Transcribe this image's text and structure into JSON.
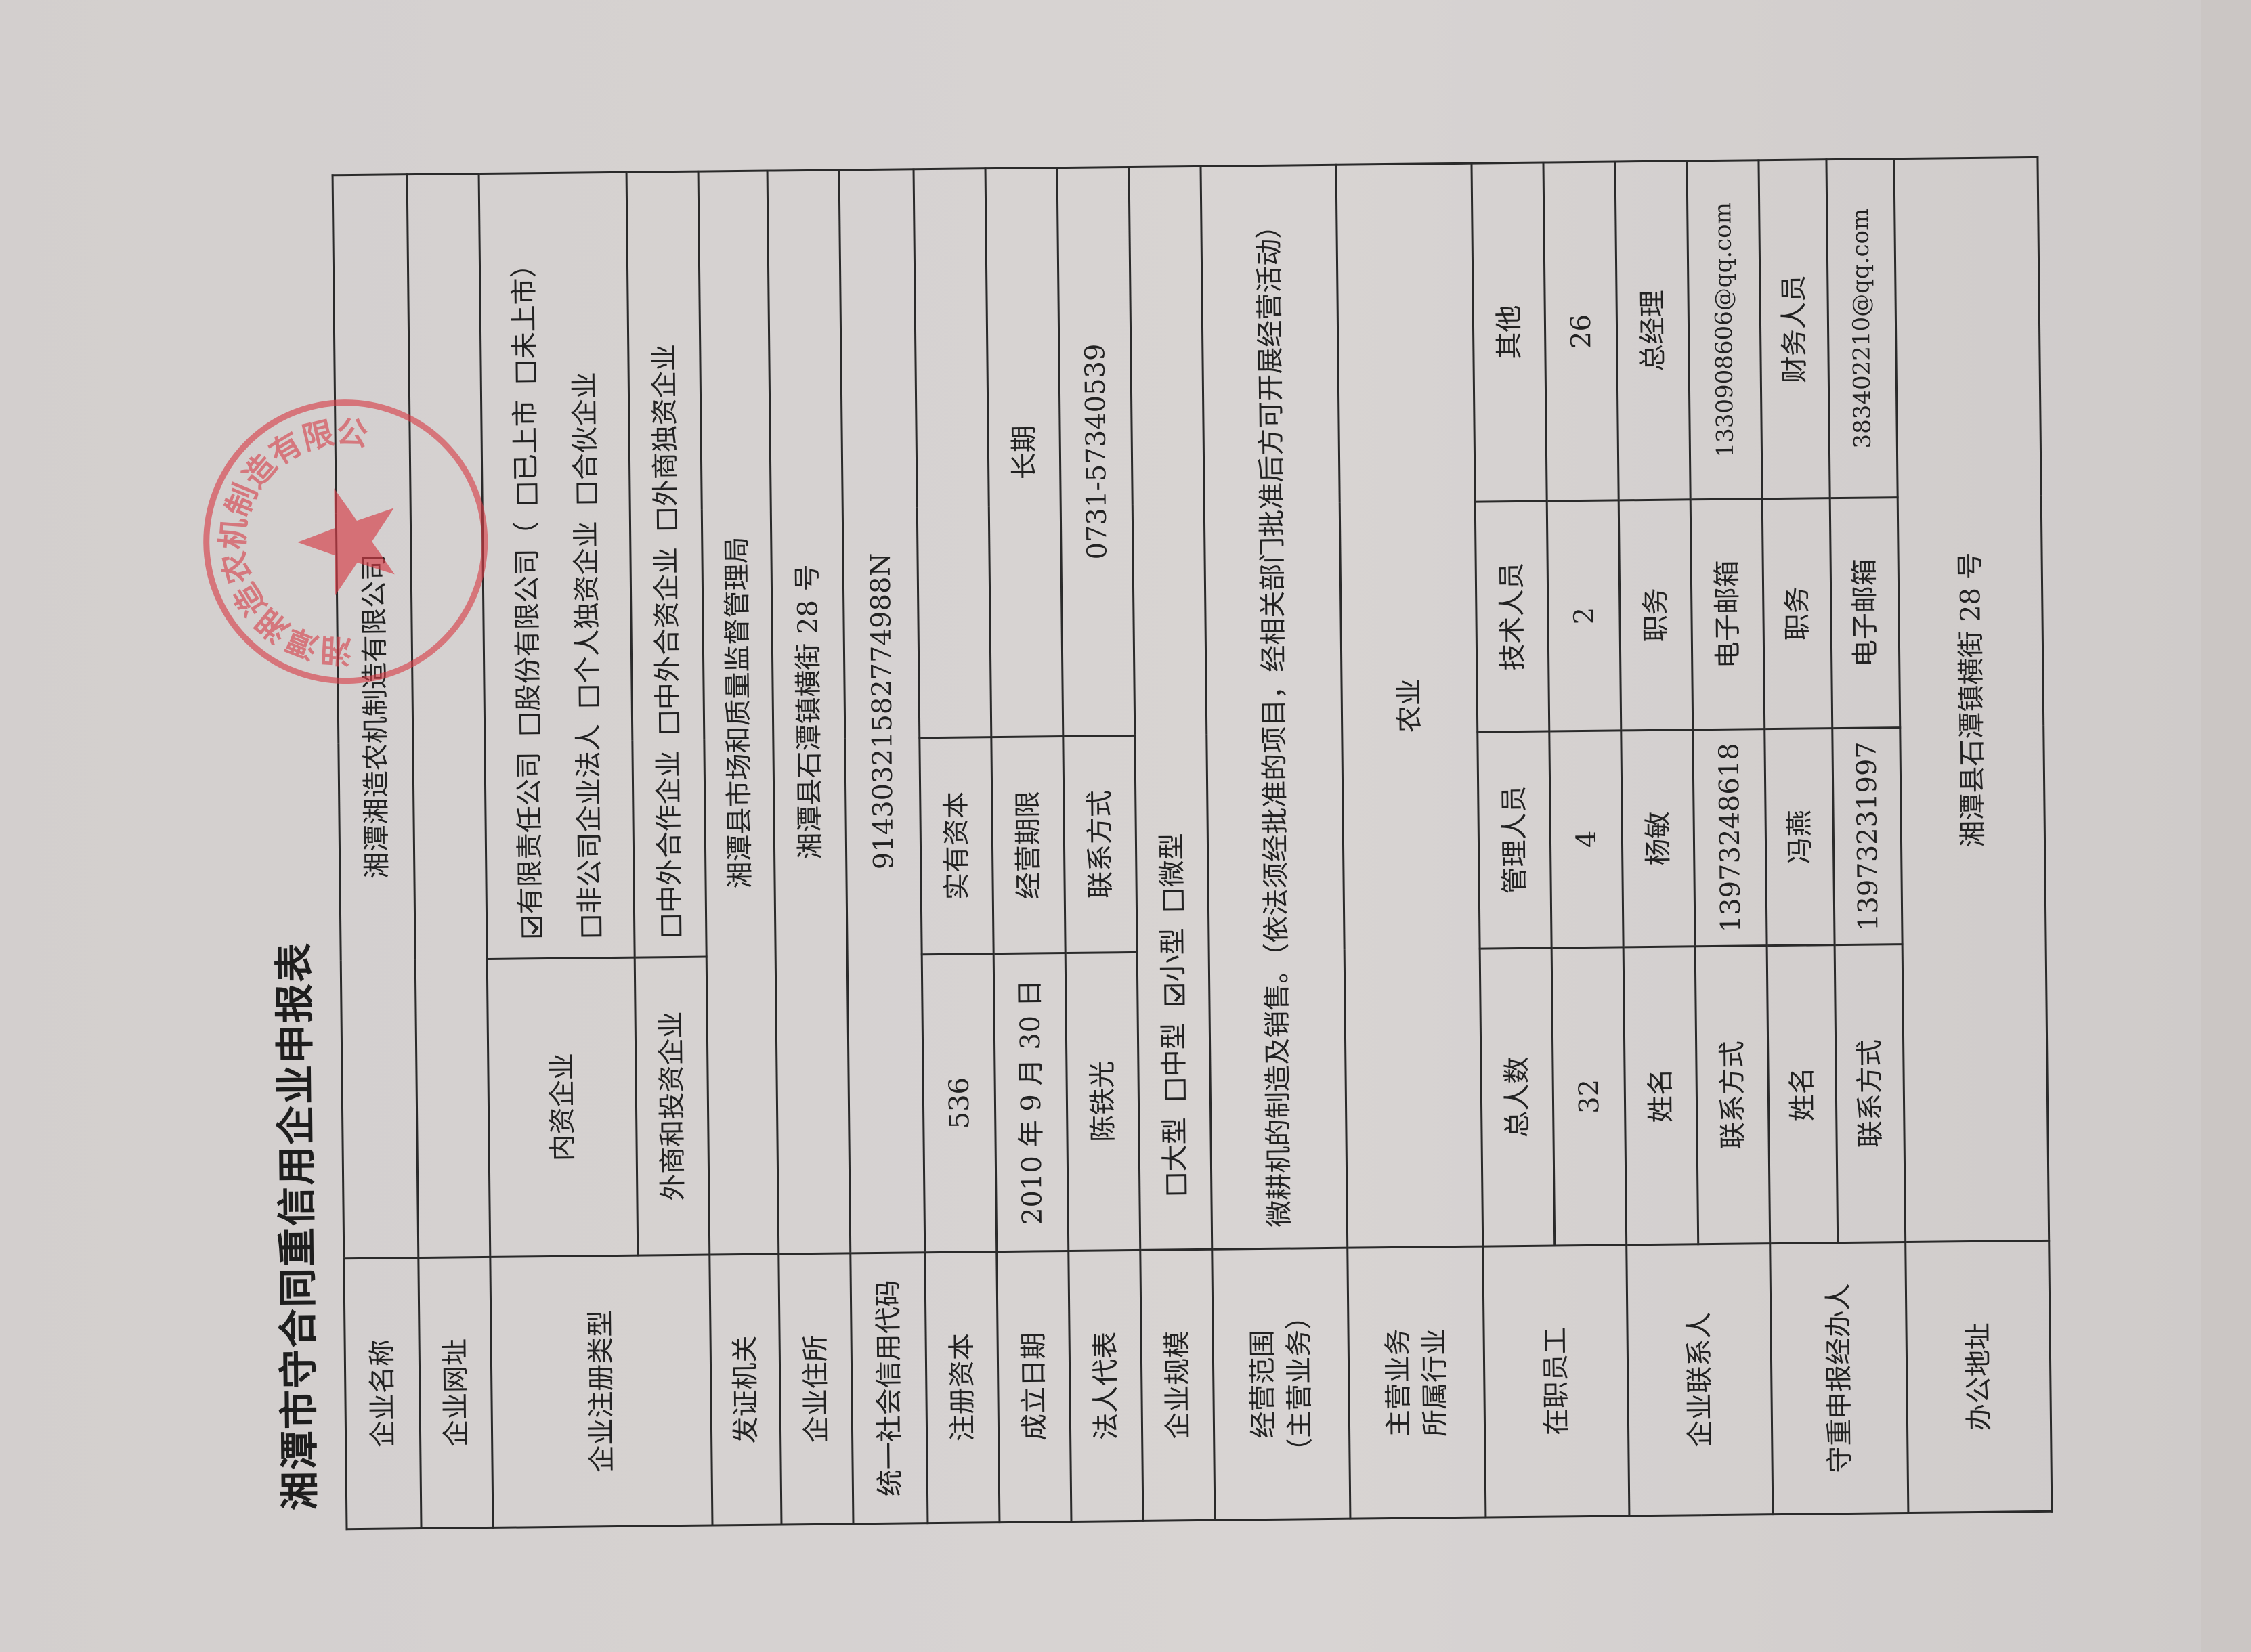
{
  "document": {
    "title": "湘潭市守合同重信用企业申报表",
    "stamp": {
      "text": "湘潭湘造农机制造有限公司",
      "color": "#d63c46"
    },
    "rows": {
      "company_name": {
        "label": "企业名称",
        "value": "湘潭湘造农机制造有限公司"
      },
      "website": {
        "label": "企业网址",
        "value": ""
      },
      "registration_type": {
        "label": "企业注册类型",
        "domestic": {
          "label": "内资企业",
          "options": [
            {
              "label": "有限责任公司",
              "checked": true
            },
            {
              "label": "股份有限公司（",
              "checked": false
            },
            {
              "label": "已上市",
              "checked": false
            },
            {
              "label": "未上市）",
              "checked": false
            },
            {
              "label": "非公司企业法人",
              "checked": false
            },
            {
              "label": "个人独资企业",
              "checked": false
            },
            {
              "label": "合伙企业",
              "checked": false
            }
          ]
        },
        "foreign": {
          "label": "外商和投资企业",
          "options": [
            {
              "label": "中外合作企业",
              "checked": false
            },
            {
              "label": "中外合资企业",
              "checked": false
            },
            {
              "label": "外商独资企业",
              "checked": false
            }
          ]
        }
      },
      "issuing_authority": {
        "label": "发证机关",
        "value": "湘潭县市场和质量监督管理局"
      },
      "address": {
        "label": "企业住所",
        "value": "湘潭县石潭镇横街 28 号"
      },
      "credit_code": {
        "label": "统一社会信用代码",
        "value": "91430321582774988N"
      },
      "capital": {
        "label": "注册资本",
        "value": "536",
        "label2": "实有资本",
        "value2": ""
      },
      "founded": {
        "label": "成立日期",
        "value": "2010 年 9 月 30 日",
        "label2": "经营期限",
        "value2": "长期"
      },
      "legal_rep": {
        "label": "法人代表",
        "value": "陈铁光",
        "label2": "联系方式",
        "value2": "0731-57340539"
      },
      "scale": {
        "label": "企业规模",
        "options": [
          {
            "label": "大型",
            "checked": false
          },
          {
            "label": "中型",
            "checked": false
          },
          {
            "label": "小型",
            "checked": true
          },
          {
            "label": "微型",
            "checked": false
          }
        ]
      },
      "business_scope": {
        "label": "经营范围",
        "label_sub": "（主营业务）",
        "value": "微耕机的制造及销售。（依法须经批准的项目，经相关部门批准后方可开展经营活动）"
      },
      "industry": {
        "label": "主营业务",
        "label_sub": "所属行业",
        "value": "农业"
      },
      "employees": {
        "label": "在职员工",
        "headers": [
          "总人数",
          "管理人员",
          "技术人员",
          "其他"
        ],
        "values": [
          "32",
          "4",
          "2",
          "26"
        ]
      },
      "contact": {
        "label": "企业联系人",
        "name_label": "姓名",
        "name": "杨敏",
        "title_label": "职务",
        "title": "总经理",
        "phone_label": "联系方式",
        "phone": "13973248618",
        "email_label": "电子邮箱",
        "email": "1330908606@qq.com"
      },
      "applicant": {
        "label": "守重申报经办人",
        "name_label": "姓名",
        "name": "冯燕",
        "title_label": "职务",
        "title": "财务人员",
        "phone_label": "联系方式",
        "phone": "13973231997",
        "email_label": "电子邮箱",
        "email": "383402210@qq.com"
      },
      "office": {
        "label": "办公地址",
        "value": "湘潭县石潭镇横街 28 号"
      }
    }
  }
}
